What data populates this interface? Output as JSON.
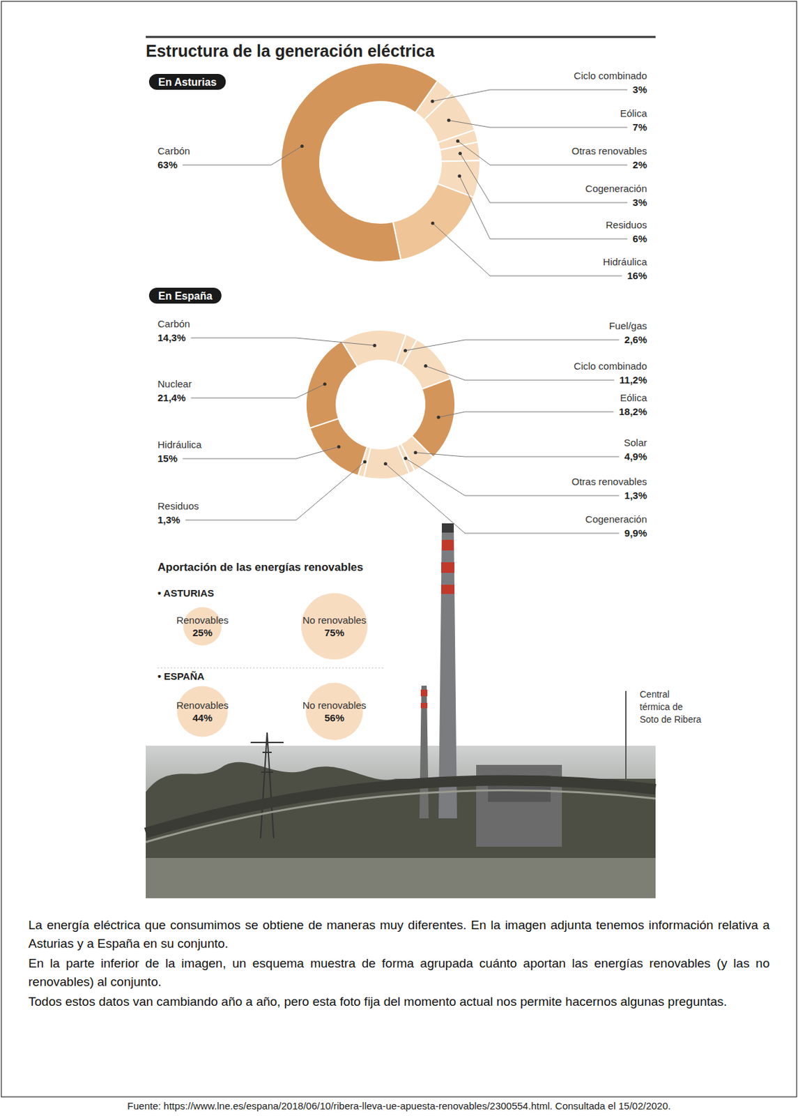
{
  "header": {
    "title": "Estructura de la generación eléctrica"
  },
  "chart_data": [
    {
      "type": "donut",
      "title": "En Asturias",
      "categories": [
        "Ciclo combinado",
        "Eólica",
        "Otras renovables",
        "Cogeneración",
        "Residuos",
        "Hidráulica",
        "Carbón"
      ],
      "values": [
        3,
        7,
        2,
        3,
        6,
        16,
        63
      ],
      "value_labels": [
        "3%",
        "7%",
        "2%",
        "3%",
        "6%",
        "16%",
        "63%"
      ],
      "colors": [
        "#f6dbbd",
        "#f6dbbd",
        "#f6dbbd",
        "#f6dbbd",
        "#f6dbbd",
        "#efc597",
        "#d4955a"
      ],
      "data_labels": true
    },
    {
      "type": "donut",
      "title": "En España",
      "categories": [
        "Fuel/gas",
        "Ciclo combinado",
        "Eólica",
        "Solar",
        "Otras renovables",
        "Cogeneración",
        "Residuos",
        "Hidráulica",
        "Nuclear",
        "Carbón"
      ],
      "values": [
        2.6,
        11.2,
        18.2,
        4.9,
        1.3,
        9.9,
        1.3,
        15,
        21.4,
        14.3
      ],
      "value_labels": [
        "2,6%",
        "11,2%",
        "18,2%",
        "4,9%",
        "1,3%",
        "9,9%",
        "1,3%",
        "15%",
        "21,4%",
        "14,3%"
      ],
      "colors": [
        "#f6dbbd",
        "#f6dbbd",
        "#d4955a",
        "#f6dbbd",
        "#f6dbbd",
        "#f6dbbd",
        "#f6dbbd",
        "#d4955a",
        "#d4955a",
        "#f6dbbd"
      ],
      "data_labels": true
    },
    {
      "type": "bubble",
      "title": "• ASTURIAS",
      "categories": [
        "Renovables",
        "No renovables"
      ],
      "values": [
        25,
        75
      ],
      "value_labels": [
        "25%",
        "75%"
      ],
      "color": "#f8dcc0",
      "data_labels": true
    },
    {
      "type": "bubble",
      "title": "• ESPAÑA",
      "categories": [
        "Renovables",
        "No renovables"
      ],
      "values": [
        44,
        56
      ],
      "value_labels": [
        "44%",
        "56%"
      ],
      "color": "#f8dcc0",
      "data_labels": true
    }
  ],
  "section": {
    "title": "Aportación de las energías renovables"
  },
  "photo": {
    "caption": [
      "Central",
      "térmica de",
      "Soto de Ribera"
    ]
  },
  "text": {
    "paragraphs": [
      "La energía eléctrica que consumimos se obtiene de maneras muy diferentes. En la imagen adjunta tenemos información relativa a Asturias y a España en su conjunto.",
      "En la parte inferior de la imagen, un esquema muestra de forma agrupada cuánto aportan las energías renovables (y las no renovables) al conjunto.",
      "Todos estos datos van cambiando año a año, pero esta foto fija del momento actual nos permite hacernos algunas preguntas."
    ],
    "source": "Fuente: https://www.lne.es/espana/2018/06/10/ribera-lleva-ue-apuesta-renovables/2300554.html. Consultada el 15/02/2020."
  }
}
